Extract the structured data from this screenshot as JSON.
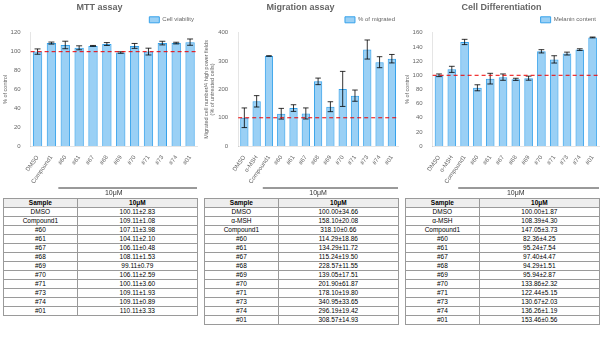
{
  "chart_data": [
    {
      "type": "bar",
      "title": "MTT assay",
      "ylabel": "% of control",
      "xlabel": "10μM",
      "categories": [
        "DMSO",
        "Compound1",
        "#60",
        "#61",
        "#67",
        "#68",
        "#69",
        "#70",
        "#71",
        "#73",
        "#74",
        "#01"
      ],
      "series": [
        {
          "name": "Cell viability",
          "values": [
            100.11,
            109.11,
            107.11,
            104.11,
            106.11,
            108.11,
            99.11,
            106.11,
            100.11,
            109.11,
            109.11,
            110.11
          ],
          "errors": [
            2.83,
            1.08,
            3.98,
            2.1,
            0.48,
            1.53,
            0.79,
            2.59,
            3.6,
            1.93,
            0.89,
            3.33
          ]
        }
      ],
      "ylim": [
        0,
        120
      ],
      "yticks": [
        0,
        20,
        40,
        60,
        80,
        100,
        120
      ],
      "grid": false,
      "legend": "upper right",
      "hline": {
        "value": 100,
        "color": "#ee0000"
      },
      "table": {
        "columns": [
          "Sample",
          "10μM"
        ],
        "rows": [
          [
            "DMSO",
            "100.11±2.83"
          ],
          [
            "Compound1",
            "109.11±1.08"
          ],
          [
            "#60",
            "107.11±3.98"
          ],
          [
            "#61",
            "104.11±2.10"
          ],
          [
            "#67",
            "106.11±0.48"
          ],
          [
            "#68",
            "108.11±1.53"
          ],
          [
            "#69",
            "99.11±0.79"
          ],
          [
            "#70",
            "106.11±2.59"
          ],
          [
            "#71",
            "100.11±3.60"
          ],
          [
            "#73",
            "109.11±1.93"
          ],
          [
            "#74",
            "109.11±0.89"
          ],
          [
            "#01",
            "110.11±3.33"
          ]
        ]
      }
    },
    {
      "type": "bar",
      "title": "Migration assay",
      "ylabel": "Migrated cell number/4 high power fields\n(% of untreated cells)",
      "xlabel": "10μM",
      "categories": [
        "DMSO",
        "α-MSH",
        "Compound1",
        "#60",
        "#61",
        "#67",
        "#68",
        "#69",
        "#70",
        "#71",
        "#73",
        "#74",
        "#01"
      ],
      "series": [
        {
          "name": "% of migrated",
          "values": [
            100.0,
            158.1,
            318.1,
            114.29,
            134.29,
            115.24,
            228.57,
            139.05,
            201.9,
            178.1,
            340.95,
            296.19,
            308.57
          ],
          "errors": [
            34.66,
            20.08,
            0.66,
            18.86,
            11.72,
            19.5,
            11.55,
            17.51,
            61.87,
            19.8,
            33.65,
            19.42,
            14.93
          ]
        }
      ],
      "ylim": [
        0,
        400
      ],
      "yticks": [
        0,
        100,
        200,
        300,
        400
      ],
      "grid": false,
      "legend": "upper right",
      "hline": {
        "value": 100,
        "color": "#ee0000"
      },
      "table": {
        "columns": [
          "Sample",
          "10μM"
        ],
        "rows": [
          [
            "DMSO",
            "100.00±34.66"
          ],
          [
            "α-MSH",
            "158.10±20.08"
          ],
          [
            "Compound1",
            "318.10±0.66"
          ],
          [
            "#60",
            "114.29±18.86"
          ],
          [
            "#61",
            "134.29±11.72"
          ],
          [
            "#67",
            "115.24±19.50"
          ],
          [
            "#68",
            "228.57±11.55"
          ],
          [
            "#69",
            "139.05±17.51"
          ],
          [
            "#70",
            "201.90±61.87"
          ],
          [
            "#71",
            "178.10±19.80"
          ],
          [
            "#73",
            "340.95±33.65"
          ],
          [
            "#74",
            "296.19±19.42"
          ],
          [
            "#01",
            "308.57±14.93"
          ]
        ]
      }
    },
    {
      "type": "bar",
      "title": "Cell Differentiation",
      "ylabel": "% of control",
      "xlabel": "10μM",
      "categories": [
        "DMSO",
        "α-MSH",
        "Compound1",
        "#60",
        "#61",
        "#67",
        "#68",
        "#69",
        "#70",
        "#71",
        "#73",
        "#74",
        "#01"
      ],
      "series": [
        {
          "name": "Melanin content",
          "values": [
            100.0,
            108.39,
            147.05,
            82.36,
            95.24,
            97.4,
            94.29,
            95.94,
            133.86,
            122.44,
            130.67,
            136.26,
            153.46
          ],
          "errors": [
            1.87,
            4.3,
            3.73,
            4.25,
            7.54,
            4.47,
            1.51,
            2.87,
            2.32,
            5.15,
            2.03,
            1.19,
            0.56
          ]
        }
      ],
      "ylim": [
        0,
        160
      ],
      "yticks": [
        0,
        20,
        40,
        60,
        80,
        100,
        120,
        140,
        160
      ],
      "grid": false,
      "legend": "upper right",
      "hline": {
        "value": 100,
        "color": "#ee0000"
      },
      "table": {
        "columns": [
          "Sample",
          "10μM"
        ],
        "rows": [
          [
            "DMSO",
            "100.00±1.87"
          ],
          [
            "α-MSH",
            "108.39±4.30"
          ],
          [
            "Compound1",
            "147.05±3.73"
          ],
          [
            "#60",
            "82.36±4.25"
          ],
          [
            "#61",
            "95.24±7.54"
          ],
          [
            "#67",
            "97.40±4.47"
          ],
          [
            "#68",
            "94.29±1.51"
          ],
          [
            "#69",
            "95.94±2.87"
          ],
          [
            "#70",
            "133.86±2.32"
          ],
          [
            "#71",
            "122.44±5.15"
          ],
          [
            "#73",
            "130.67±2.03"
          ],
          [
            "#74",
            "136.26±1.19"
          ],
          [
            "#01",
            "153.46±0.56"
          ]
        ]
      }
    }
  ]
}
